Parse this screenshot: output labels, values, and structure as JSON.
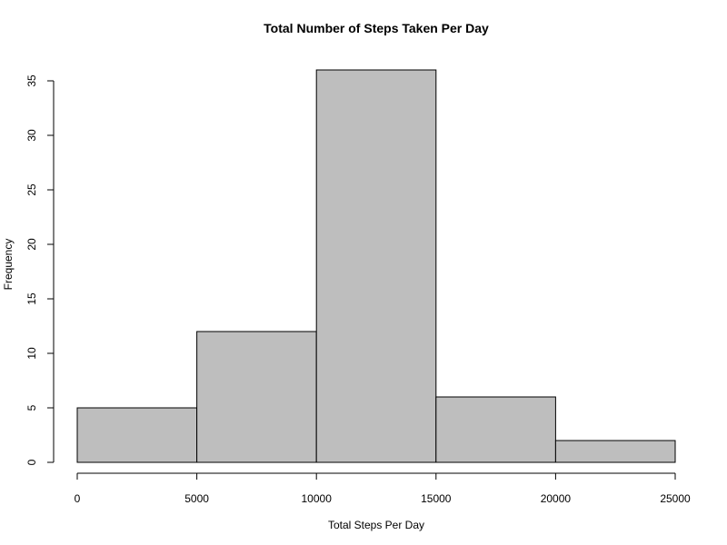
{
  "chart_data": {
    "type": "bar",
    "title": "Total Number of Steps Taken Per Day",
    "xlabel": "Total Steps Per Day",
    "ylabel": "Frequency",
    "bins": [
      {
        "from": 0,
        "to": 5000,
        "count": 5
      },
      {
        "from": 5000,
        "to": 10000,
        "count": 12
      },
      {
        "from": 10000,
        "to": 15000,
        "count": 36
      },
      {
        "from": 15000,
        "to": 20000,
        "count": 6
      },
      {
        "from": 20000,
        "to": 25000,
        "count": 2
      }
    ],
    "xlim": [
      0,
      25000
    ],
    "ylim": [
      0,
      35
    ],
    "xticks": [
      0,
      5000,
      10000,
      15000,
      20000,
      25000
    ],
    "yticks": [
      0,
      5,
      10,
      15,
      20,
      25,
      30,
      35
    ],
    "grid": false,
    "bar_color": "#bebebe",
    "edge_color": "#000000"
  }
}
